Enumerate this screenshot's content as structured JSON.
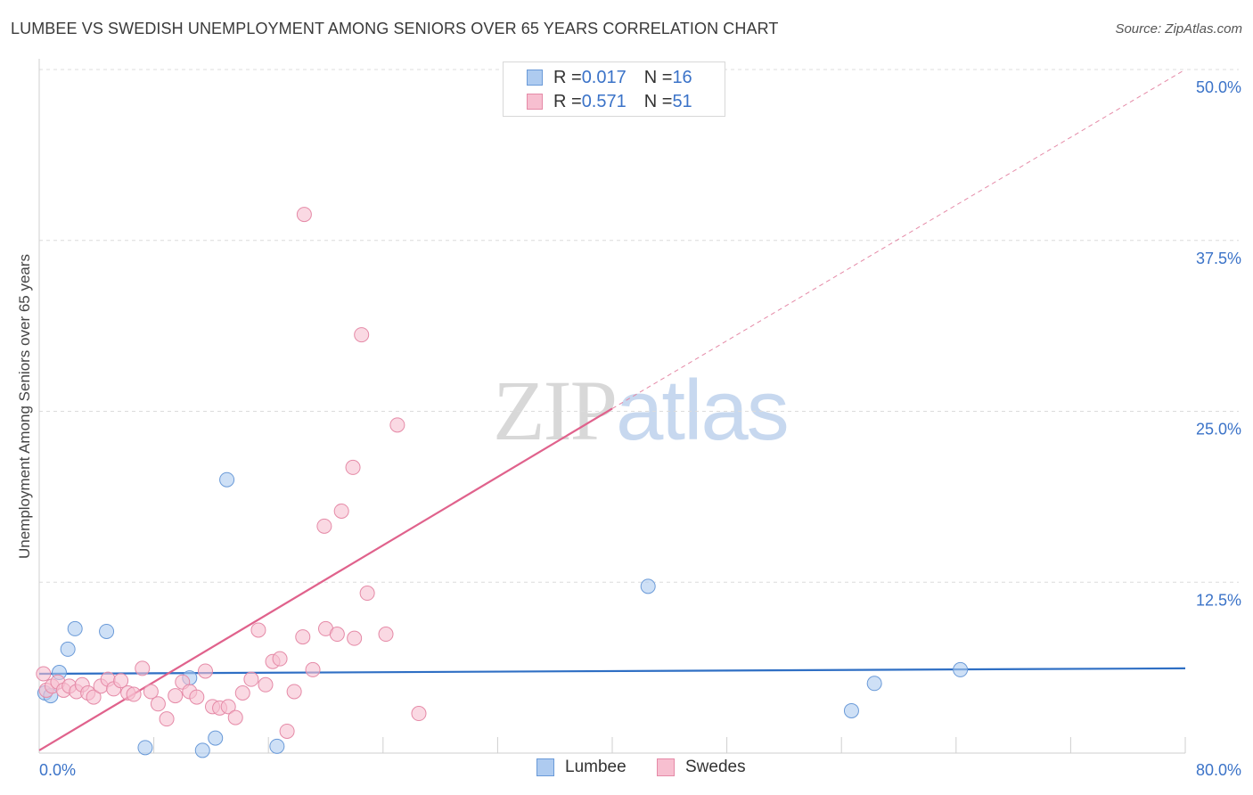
{
  "header": {
    "title": "LUMBEE VS SWEDISH UNEMPLOYMENT AMONG SENIORS OVER 65 YEARS CORRELATION CHART",
    "source": "Source: ZipAtlas.com"
  },
  "watermark": {
    "zip": "ZIP",
    "atlas": "atlas"
  },
  "colors": {
    "lumbee_fill": "#aecbf0",
    "lumbee_stroke": "#6a9ad8",
    "lumbee_line": "#2f6fc4",
    "swedes_fill": "#f7bfd0",
    "swedes_stroke": "#e58aa7",
    "swedes_line": "#e0628c",
    "axis_label": "#3b73c8",
    "grid": "#dcdcdc"
  },
  "legend_top": {
    "rows": [
      {
        "r_label": "R = ",
        "r_value": "0.017",
        "n_label": "N = ",
        "n_value": "16"
      },
      {
        "r_label": "R = ",
        "r_value": "0.571",
        "n_label": "N = ",
        "n_value": "51"
      }
    ]
  },
  "chart_data": {
    "type": "scatter",
    "title": "LUMBEE VS SWEDISH UNEMPLOYMENT AMONG SENIORS OVER 65 YEARS CORRELATION CHART",
    "xlabel": "",
    "ylabel": "Unemployment Among Seniors over 65 years",
    "xlim": [
      0,
      80
    ],
    "ylim": [
      0,
      50
    ],
    "x_tick_labels": [
      "0.0%",
      "80.0%"
    ],
    "y_ticks": [
      12.5,
      25.0,
      37.5,
      50.0
    ],
    "y_tick_labels": [
      "12.5%",
      "25.0%",
      "37.5%",
      "50.0%"
    ],
    "grid": true,
    "legend": [
      "Lumbee",
      "Swedes"
    ],
    "series": [
      {
        "name": "Lumbee",
        "r": 0.017,
        "n": 16,
        "trend": {
          "x": [
            0,
            80
          ],
          "y": [
            5.8,
            6.2
          ],
          "style": "solid"
        },
        "points": [
          [
            0.4,
            4.4
          ],
          [
            0.8,
            4.2
          ],
          [
            1.4,
            5.9
          ],
          [
            2.0,
            7.6
          ],
          [
            2.5,
            9.1
          ],
          [
            4.7,
            8.9
          ],
          [
            7.4,
            0.4
          ],
          [
            10.5,
            5.5
          ],
          [
            11.4,
            0.2
          ],
          [
            12.3,
            1.1
          ],
          [
            13.1,
            20.0
          ],
          [
            16.6,
            0.5
          ],
          [
            42.5,
            12.2
          ],
          [
            56.7,
            3.1
          ],
          [
            58.3,
            5.1
          ],
          [
            64.3,
            6.1
          ]
        ]
      },
      {
        "name": "Swedes",
        "r": 0.571,
        "n": 51,
        "trend": {
          "x": [
            0,
            40
          ],
          "y": [
            0.2,
            25.2
          ],
          "style": "solid",
          "extension": {
            "x": [
              40,
              80
            ],
            "y": [
              25.2,
              50.0
            ],
            "style": "dashed"
          }
        },
        "points": [
          [
            0.3,
            5.8
          ],
          [
            0.5,
            4.6
          ],
          [
            0.9,
            4.9
          ],
          [
            1.3,
            5.2
          ],
          [
            1.7,
            4.6
          ],
          [
            2.1,
            4.9
          ],
          [
            2.6,
            4.5
          ],
          [
            3.0,
            5.0
          ],
          [
            3.4,
            4.4
          ],
          [
            3.8,
            4.1
          ],
          [
            4.3,
            4.9
          ],
          [
            4.8,
            5.4
          ],
          [
            5.2,
            4.7
          ],
          [
            5.7,
            5.3
          ],
          [
            6.2,
            4.4
          ],
          [
            6.6,
            4.3
          ],
          [
            7.2,
            6.2
          ],
          [
            7.8,
            4.5
          ],
          [
            8.3,
            3.6
          ],
          [
            8.9,
            2.5
          ],
          [
            9.5,
            4.2
          ],
          [
            10.0,
            5.2
          ],
          [
            10.5,
            4.5
          ],
          [
            11.0,
            4.1
          ],
          [
            11.6,
            6.0
          ],
          [
            12.1,
            3.4
          ],
          [
            12.6,
            3.3
          ],
          [
            13.2,
            3.4
          ],
          [
            13.7,
            2.6
          ],
          [
            14.2,
            4.4
          ],
          [
            14.8,
            5.4
          ],
          [
            15.3,
            9.0
          ],
          [
            15.8,
            5.0
          ],
          [
            16.3,
            6.7
          ],
          [
            16.8,
            6.9
          ],
          [
            17.3,
            1.6
          ],
          [
            17.8,
            4.5
          ],
          [
            18.4,
            8.5
          ],
          [
            19.1,
            6.1
          ],
          [
            20.0,
            9.1
          ],
          [
            20.8,
            8.7
          ],
          [
            22.0,
            8.4
          ],
          [
            22.9,
            11.7
          ],
          [
            24.2,
            8.7
          ],
          [
            25.0,
            24.0
          ],
          [
            26.5,
            2.9
          ],
          [
            18.5,
            39.4
          ],
          [
            22.5,
            30.6
          ],
          [
            21.9,
            20.9
          ],
          [
            21.1,
            17.7
          ],
          [
            19.9,
            16.6
          ]
        ]
      }
    ]
  }
}
